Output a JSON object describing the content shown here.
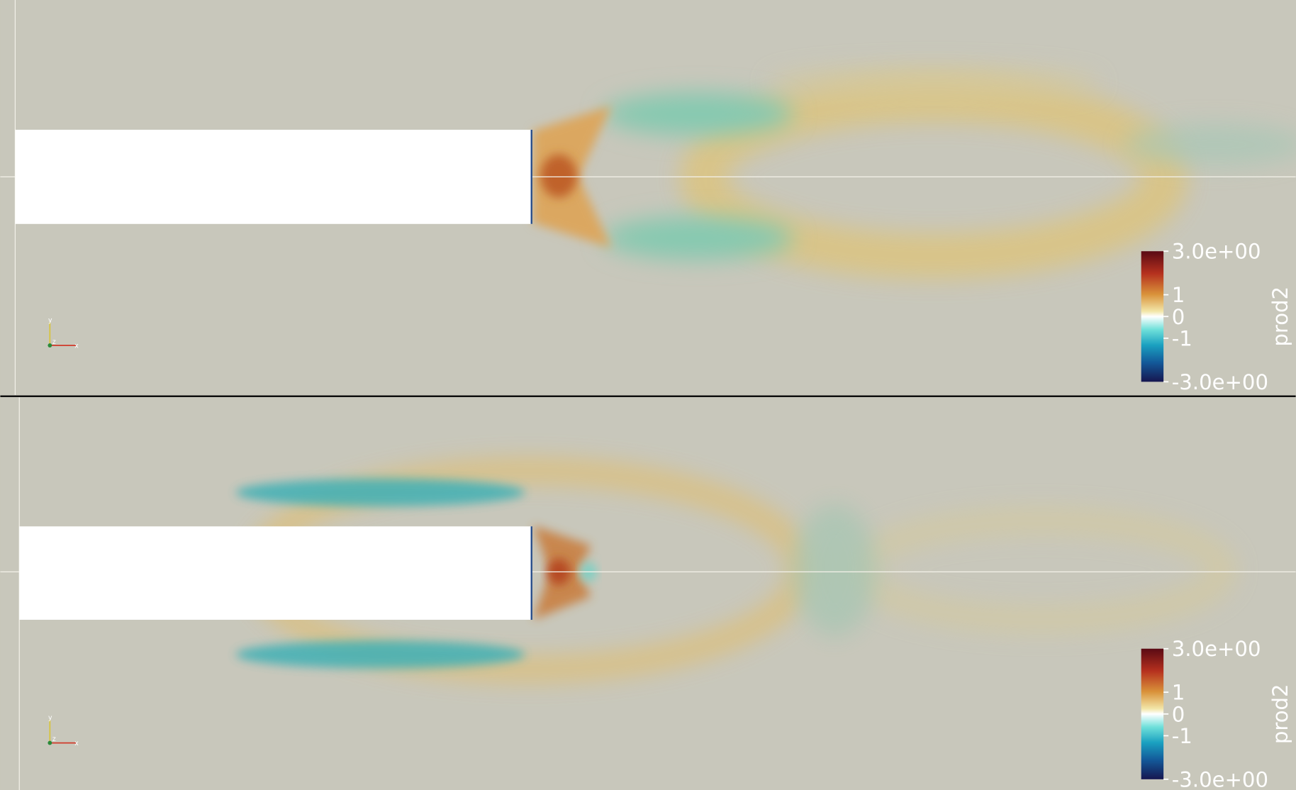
{
  "panels": [
    {
      "colorbar": {
        "title": "prod2",
        "range": [
          -3,
          3
        ],
        "ticks": [
          {
            "value": 3,
            "label": "3.0e+00"
          },
          1,
          0,
          -1,
          {
            "value": -3,
            "label": "-3.0e+00"
          }
        ]
      },
      "axes_triad": {
        "x": "x",
        "y": "y",
        "z": "z"
      }
    },
    {
      "colorbar": {
        "title": "prod2",
        "range": [
          -3,
          3
        ],
        "ticks": [
          {
            "value": 3,
            "label": "3.0e+00"
          },
          1,
          0,
          -1,
          {
            "value": -3,
            "label": "-3.0e+00"
          }
        ]
      },
      "axes_triad": {
        "x": "x",
        "y": "y",
        "z": "z"
      }
    }
  ]
}
